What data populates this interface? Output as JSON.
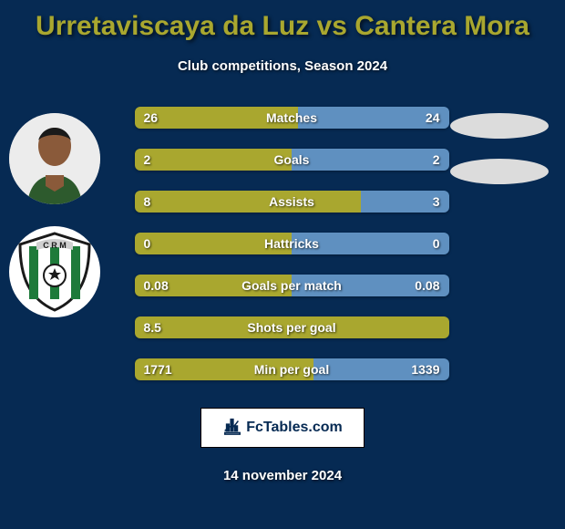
{
  "background_color": "#062a53",
  "title": {
    "text": "Urretaviscaya da Luz vs Cantera Mora",
    "color": "#a9a72f"
  },
  "subtitle": "Club competitions, Season 2024",
  "date": "14 november 2024",
  "colors": {
    "player_left": "#a9a72f",
    "player_right": "#5f90c0",
    "oval": "#dcdcdc"
  },
  "bars": [
    {
      "label": "Matches",
      "left_val": "26",
      "right_val": "24",
      "left_pct": 52,
      "right_pct": 48
    },
    {
      "label": "Goals",
      "left_val": "2",
      "right_val": "2",
      "left_pct": 50,
      "right_pct": 50
    },
    {
      "label": "Assists",
      "left_val": "8",
      "right_val": "3",
      "left_pct": 72,
      "right_pct": 28
    },
    {
      "label": "Hattricks",
      "left_val": "0",
      "right_val": "0",
      "left_pct": 50,
      "right_pct": 50
    },
    {
      "label": "Goals per match",
      "left_val": "0.08",
      "right_val": "0.08",
      "left_pct": 50,
      "right_pct": 50
    },
    {
      "label": "Shots per goal",
      "left_val": "8.5",
      "right_val": "",
      "left_pct": 100,
      "right_pct": 0
    },
    {
      "label": "Min per goal",
      "left_val": "1771",
      "right_val": "1339",
      "left_pct": 57,
      "right_pct": 43
    }
  ],
  "logo_text": "FcTables.com"
}
